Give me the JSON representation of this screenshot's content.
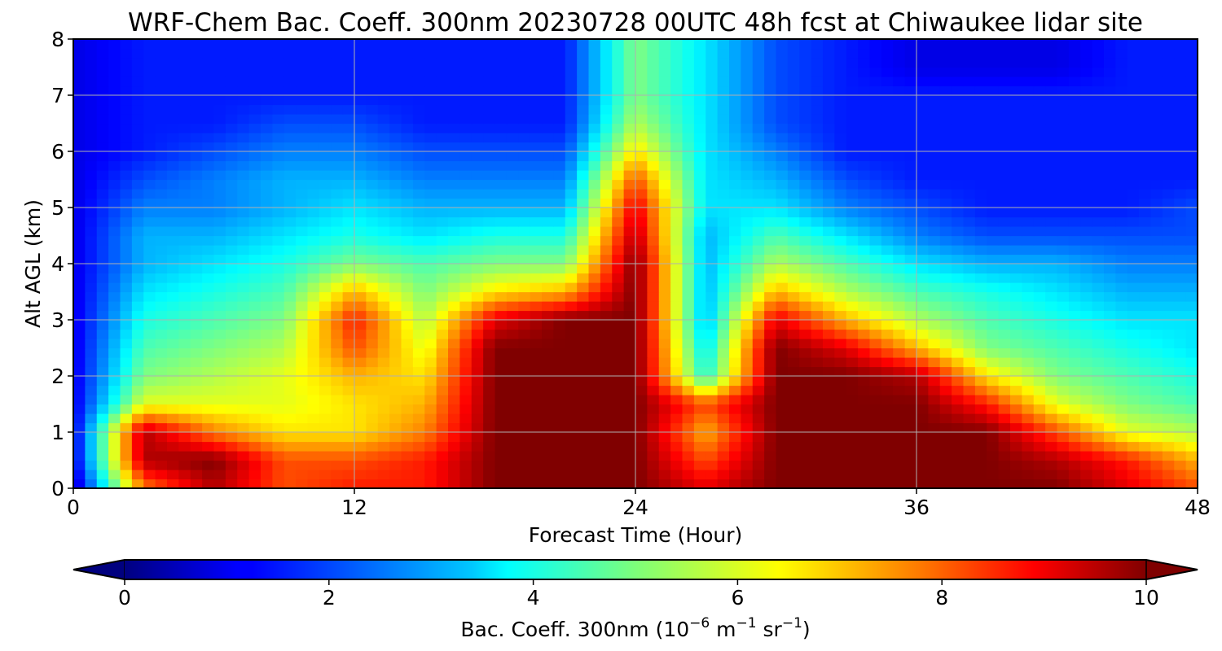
{
  "chart_data": {
    "type": "heatmap",
    "title": "WRF-Chem Bac. Coeff. 300nm  20230728 00UTC 48h fcst at Chiwaukee lidar site",
    "xlabel": "Forecast Time (Hour)",
    "ylabel": "Alt AGL (km)",
    "xlim": [
      0,
      48
    ],
    "ylim": [
      0,
      8
    ],
    "x_ticks": [
      "0",
      "12",
      "24",
      "36",
      "48"
    ],
    "y_ticks": [
      "0",
      "1",
      "2",
      "3",
      "4",
      "5",
      "6",
      "7",
      "8"
    ],
    "grid": true,
    "colormap": "jet",
    "colorbar": {
      "orientation": "horizontal",
      "extend": "both",
      "range": [
        0,
        10
      ],
      "ticks": [
        "0",
        "2",
        "4",
        "6",
        "8",
        "10"
      ],
      "label_main": "Bac. Coeff. 300nm  (10",
      "label_exp1": "−6",
      "label_mid": " m",
      "label_exp2": "−1",
      "label_mid2": " sr",
      "label_exp3": "−1",
      "label_end": ")"
    },
    "x_hours": [
      0,
      3,
      6,
      9,
      12,
      15,
      18,
      21,
      24,
      27,
      30,
      33,
      36,
      39,
      42,
      45,
      48
    ],
    "y_km": [
      0,
      0.5,
      1,
      1.5,
      2,
      2.5,
      3,
      3.5,
      4,
      4.5,
      5,
      5.5,
      6,
      6.5,
      7,
      7.5,
      8
    ],
    "values_rows_by_altitude": [
      [
        0.5,
        7.5,
        9.5,
        8,
        8.5,
        8.5,
        10,
        10,
        10,
        9,
        10,
        10,
        10,
        10,
        10,
        9,
        8
      ],
      [
        1,
        9.5,
        10,
        8,
        8,
        8.5,
        10,
        10,
        10,
        8,
        10,
        10,
        10,
        10,
        9.5,
        8.5,
        7
      ],
      [
        1,
        9.5,
        7.5,
        6.5,
        6.5,
        7.5,
        10,
        10,
        10,
        7,
        10,
        10,
        10,
        10,
        8,
        6,
        5.5
      ],
      [
        1,
        6,
        6,
        6,
        6.5,
        7,
        10,
        10,
        10,
        8,
        10,
        10,
        10,
        8.5,
        6,
        5,
        4.5
      ],
      [
        1,
        5,
        5.5,
        6,
        7,
        6.5,
        10,
        10,
        10,
        4,
        10,
        10,
        9.5,
        6.5,
        5,
        4.5,
        4
      ],
      [
        1,
        4.5,
        5,
        5.5,
        8,
        6,
        10,
        10,
        10,
        3.5,
        10,
        9,
        7,
        5,
        4.5,
        4,
        3.5
      ],
      [
        1,
        4,
        4.5,
        5,
        8.5,
        5.5,
        9,
        10,
        10,
        3,
        9,
        7,
        5.5,
        4.5,
        4,
        3.5,
        3.5
      ],
      [
        1,
        3.5,
        4,
        4.5,
        7,
        5,
        6.5,
        7,
        10,
        3,
        7,
        5.5,
        4.5,
        4,
        3.5,
        3,
        3
      ],
      [
        1,
        3,
        3.5,
        4,
        5,
        4.5,
        5,
        5,
        10,
        3,
        5.5,
        4.5,
        3.5,
        3,
        3,
        2.5,
        2.5
      ],
      [
        1,
        3,
        3,
        3.5,
        4,
        3.5,
        4,
        4,
        9.5,
        3,
        4.5,
        3.5,
        2.5,
        2,
        2,
        2,
        2
      ],
      [
        1,
        2.5,
        2.5,
        3,
        3.5,
        3,
        3,
        3,
        9,
        3.5,
        3.5,
        2.5,
        2,
        1.5,
        1.5,
        1.5,
        2
      ],
      [
        1,
        2,
        2.5,
        3,
        3,
        2.5,
        2.5,
        2.5,
        8,
        3.5,
        3,
        2,
        1.5,
        1.5,
        1.5,
        1.5,
        1.5
      ],
      [
        1,
        1.5,
        2,
        2.5,
        2.5,
        2,
        2,
        2,
        6.5,
        3.5,
        2.5,
        1.5,
        1.5,
        1.5,
        1.5,
        1.5,
        1.5
      ],
      [
        1,
        1.5,
        1.5,
        2,
        2,
        1.5,
        1.5,
        1.5,
        5.5,
        3.5,
        2,
        1.5,
        1.5,
        1.5,
        1.5,
        1.5,
        1.5
      ],
      [
        1,
        1.5,
        1.5,
        1.5,
        1.5,
        1.5,
        1.5,
        1.5,
        5,
        3.5,
        2,
        1.5,
        1.5,
        1.5,
        1.5,
        1.5,
        1.5
      ],
      [
        1,
        1.5,
        1.5,
        1.5,
        1.5,
        1.5,
        1.5,
        1.5,
        5,
        3.5,
        2,
        1.5,
        1,
        1,
        1,
        1.5,
        1.5
      ],
      [
        1,
        1.5,
        1.5,
        1.5,
        1.5,
        1.5,
        1.5,
        1.5,
        5,
        3.5,
        2,
        1.5,
        1,
        1,
        1,
        1.5,
        1.5
      ]
    ]
  }
}
